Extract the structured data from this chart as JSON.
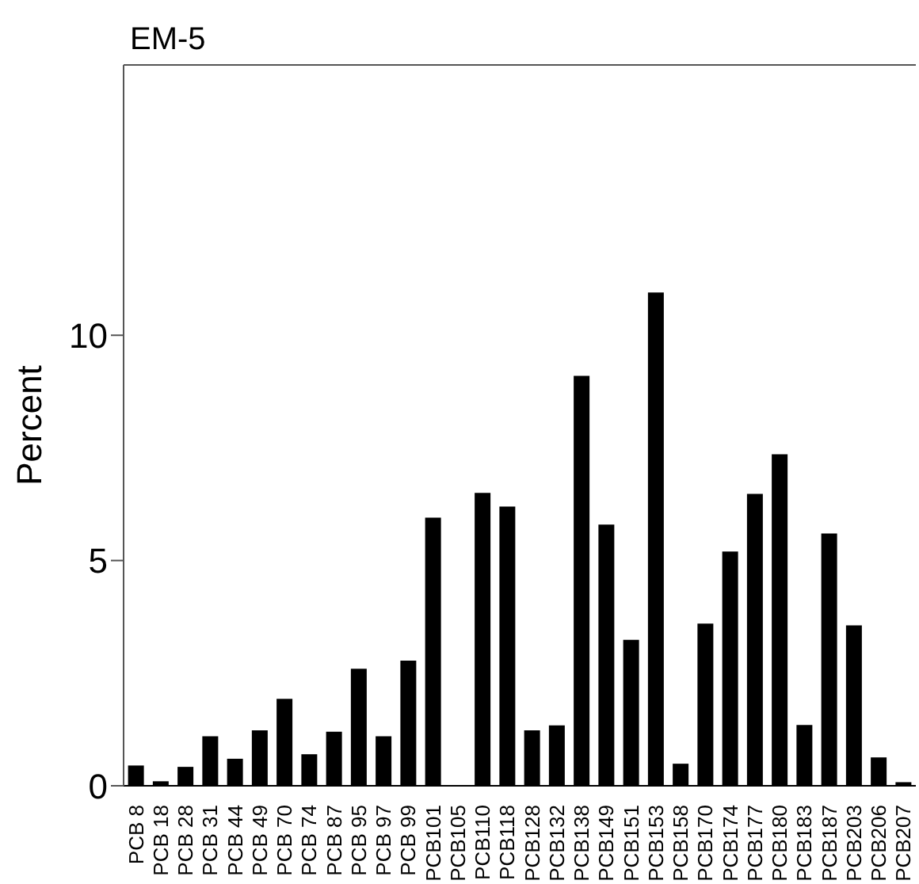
{
  "chart_data": {
    "type": "bar",
    "title": "EM-5",
    "ylabel": "Percent",
    "categories": [
      "PCB  8",
      "PCB 18",
      "PCB 28",
      "PCB 31",
      "PCB 44",
      "PCB 49",
      "PCB 70",
      "PCB 74",
      "PCB 87",
      "PCB 95",
      "PCB 97",
      "PCB 99",
      "PCB101",
      "PCB105",
      "PCB110",
      "PCB118",
      "PCB128",
      "PCB132",
      "PCB138",
      "PCB149",
      "PCB151",
      "PCB153",
      "PCB158",
      "PCB170",
      "PCB174",
      "PCB177",
      "PCB180",
      "PCB183",
      "PCB187",
      "PCB203",
      "PCB206",
      "PCB207"
    ],
    "values": [
      0.45,
      0.1,
      0.42,
      1.1,
      0.6,
      1.23,
      1.93,
      0.7,
      1.2,
      2.6,
      1.1,
      2.78,
      5.95,
      0,
      6.5,
      6.2,
      1.23,
      1.34,
      9.1,
      5.8,
      3.24,
      10.95,
      0.49,
      3.6,
      5.2,
      6.48,
      7.36,
      1.35,
      5.6,
      3.56,
      0.63,
      0.08
    ],
    "color": "#000000",
    "ylim": [
      0,
      16
    ],
    "yticks": [
      0,
      5,
      10
    ],
    "grid": false,
    "legend": false
  }
}
